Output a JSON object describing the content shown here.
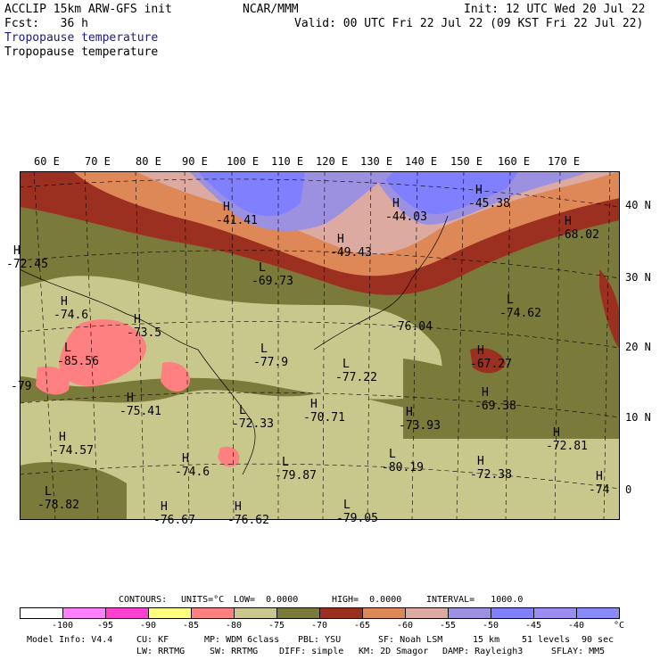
{
  "header": {
    "model": "ACCLIP 15km ARW-GFS init",
    "org": "NCAR/MMM",
    "init": "Init: 12 UTC Wed 20 Jul 22",
    "fcst": "Fcst:   36 h",
    "valid": "Valid: 00 UTC Fri 22 Jul 22 (09 KST Fri 22 Jul 22)",
    "field_title_1": "Tropopause temperature",
    "field_title_2": "Tropopause temperature"
  },
  "longitude_labels": [
    "60 E",
    "70 E",
    "80 E",
    "90 E",
    "100 E",
    "110 E",
    "120 E",
    "130 E",
    "140 E",
    "150 E",
    "160 E",
    "170 E"
  ],
  "latitude_labels": [
    "40 N",
    "30 N",
    "20 N",
    "10 N",
    "0"
  ],
  "map_labels": [
    {
      "letter": "H",
      "value": "-41.41"
    },
    {
      "letter": "H",
      "value": "-44.03"
    },
    {
      "letter": "H",
      "value": "-45.38"
    },
    {
      "letter": "H",
      "value": "-49.43"
    },
    {
      "letter": "H",
      "value": "-68.02"
    },
    {
      "letter": "L",
      "value": "-69.73"
    },
    {
      "letter": "H",
      "value": "-72.45"
    },
    {
      "letter": "H",
      "value": "-74.6"
    },
    {
      "letter": "H",
      "value": "-73.5"
    },
    {
      "letter": "L",
      "value": "-74.62"
    },
    {
      "letter": "",
      "value": "-76.04"
    },
    {
      "letter": "L",
      "value": "-85.56"
    },
    {
      "letter": "L",
      "value": "-77.9"
    },
    {
      "letter": "H",
      "value": "-67.27"
    },
    {
      "letter": "",
      "value": "-79"
    },
    {
      "letter": "L",
      "value": "-77.22"
    },
    {
      "letter": "H",
      "value": "-75.41"
    },
    {
      "letter": "H",
      "value": "-69.38"
    },
    {
      "letter": "L",
      "value": "-72.33"
    },
    {
      "letter": "H",
      "value": "-70.71"
    },
    {
      "letter": "H",
      "value": "-73.93"
    },
    {
      "letter": "H",
      "value": "-72.81"
    },
    {
      "letter": "H",
      "value": "-74.57"
    },
    {
      "letter": "H",
      "value": "-74.6"
    },
    {
      "letter": "L",
      "value": "-79.87"
    },
    {
      "letter": "L",
      "value": "-80.19"
    },
    {
      "letter": "H",
      "value": "-72.38"
    },
    {
      "letter": "H",
      "value": "-74"
    },
    {
      "letter": "L",
      "value": "-78.82"
    },
    {
      "letter": "H",
      "value": "-76.67"
    },
    {
      "letter": "H",
      "value": "-76.62"
    },
    {
      "letter": "L",
      "value": "-79.05"
    }
  ],
  "contour_info": {
    "contours": "CONTOURS:",
    "units": "UNITS=°C",
    "low": "LOW=  0.0000",
    "high": "HIGH=  0.0000",
    "interval": "INTERVAL=   1000.0"
  },
  "colorbar": {
    "colors": [
      "#ffffff",
      "#ff80ff",
      "#ff40d0",
      "#ffff80",
      "#ff8080",
      "#c8c88c",
      "#7a7a3a",
      "#9c3020",
      "#de8858",
      "#dcaaa0",
      "#9c90e0",
      "#8080ff",
      "#9a8cf0",
      "#8a8aff"
    ],
    "ticks": [
      "-100",
      "-95",
      "-90",
      "-85",
      "-80",
      "-75",
      "-70",
      "-65",
      "-60",
      "-55",
      "-50",
      "-45",
      "-40",
      "°C"
    ]
  },
  "footer": {
    "line1": [
      "Model Info: V4.4",
      "CU: KF",
      "MP: WDM 6class",
      "PBL: YSU",
      "SF: Noah LSM",
      "15 km",
      "51 levels",
      "90 sec"
    ],
    "line2": [
      "LW: RRTMG",
      "SW: RRTMG",
      "DIFF: simple",
      "KM: 2D Smagor",
      "DAMP: Rayleigh3",
      "SFLAY: MM5"
    ]
  }
}
